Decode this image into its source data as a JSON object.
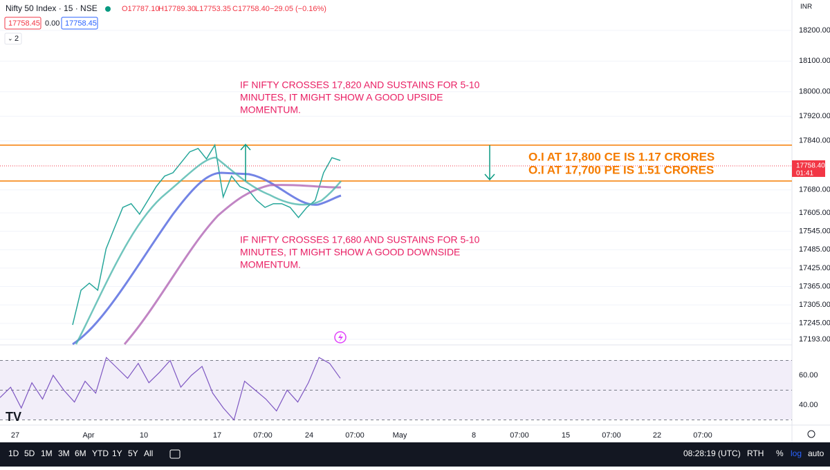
{
  "header": {
    "symbol": "Nifty 50 Index · 15 · NSE",
    "open": "O17787.10",
    "high": "H17789.30",
    "low": "L17753.35",
    "close": "C17758.40",
    "change": "−29.05 (−0.16%)",
    "bid": "17758.45",
    "spread": "0.00",
    "ask": "17758.45",
    "indicators": "2",
    "currency": "INR"
  },
  "chart_data": {
    "type": "line",
    "ylim": [
      17177,
      18299
    ],
    "yticks": [
      {
        "value": 18200,
        "label": "18200.00"
      },
      {
        "value": 18100,
        "label": "18100.00"
      },
      {
        "value": 18000,
        "label": "18000.00"
      },
      {
        "value": 17920,
        "label": "17920.00"
      },
      {
        "value": 17840,
        "label": "17840.00"
      },
      {
        "value": 17680,
        "label": "17680.00"
      },
      {
        "value": 17605,
        "label": "17605.00"
      },
      {
        "value": 17545,
        "label": "17545.00"
      },
      {
        "value": 17485,
        "label": "17485.00"
      },
      {
        "value": 17425,
        "label": "17425.00"
      },
      {
        "value": 17365,
        "label": "17365.00"
      },
      {
        "value": 17305,
        "label": "17305.00"
      },
      {
        "value": 17245,
        "label": "17245.00"
      },
      {
        "value": 17193,
        "label": "17193.00"
      }
    ],
    "levels": [
      17826,
      17709
    ],
    "level_color": "#f57c00",
    "series": [
      {
        "name": "Close",
        "color": "#26a69a",
        "values": [
          17240,
          17353,
          17376,
          17353,
          17488,
          17556,
          17623,
          17635,
          17601,
          17646,
          17691,
          17725,
          17736,
          17770,
          17804,
          17815,
          17781,
          17826,
          17657,
          17725,
          17691,
          17680,
          17646,
          17623,
          17635,
          17635,
          17623,
          17590,
          17623,
          17646,
          17736,
          17785,
          17776
        ]
      }
    ],
    "last_price": {
      "value": 17758.4,
      "label": "17758.40",
      "countdown": "01:41"
    },
    "x_labels": [
      "27",
      "Apr",
      "10",
      "17",
      "07:00",
      "24",
      "07:00",
      "May",
      "8",
      "07:00",
      "15",
      "07:00",
      "22",
      "07:00"
    ]
  },
  "rsi": {
    "ylim": [
      26.5,
      80
    ],
    "yticks": [
      {
        "value": 60,
        "label": "60.00"
      },
      {
        "value": 40,
        "label": "40.00"
      }
    ],
    "bands": [
      70,
      50,
      30
    ],
    "color": "#7e57c2",
    "values": [
      45,
      52,
      38,
      55,
      44,
      60,
      50,
      42,
      56,
      48,
      72,
      65,
      58,
      68,
      55,
      62,
      70,
      52,
      60,
      66,
      48,
      38,
      30,
      56,
      50,
      44,
      36,
      50,
      42,
      55,
      72,
      68,
      58
    ]
  },
  "annotations": {
    "upside": [
      "IF NIFTY CROSSES 17,820 AND SUSTAINS FOR 5-10",
      "MINUTES, IT MIGHT SHOW A GOOD UPSIDE",
      "MOMENTUM."
    ],
    "downside": [
      "IF NIFTY CROSSES 17,680 AND SUSTAINS FOR 5-10",
      "MINUTES, IT MIGHT SHOW A GOOD DOWNSIDE",
      "MOMENTUM."
    ],
    "oi": [
      "O.I AT 17,800 CE IS 1.17 CRORES",
      "O.I AT 17,700 PE IS 1.51 CRORES"
    ]
  },
  "toolbar": {
    "ranges": [
      "1D",
      "5D",
      "1M",
      "3M",
      "6M",
      "YTD",
      "1Y",
      "5Y",
      "All"
    ],
    "clock": "08:28:19 (UTC)",
    "session": "RTH",
    "percent": "%",
    "log": "log",
    "auto": "auto"
  }
}
